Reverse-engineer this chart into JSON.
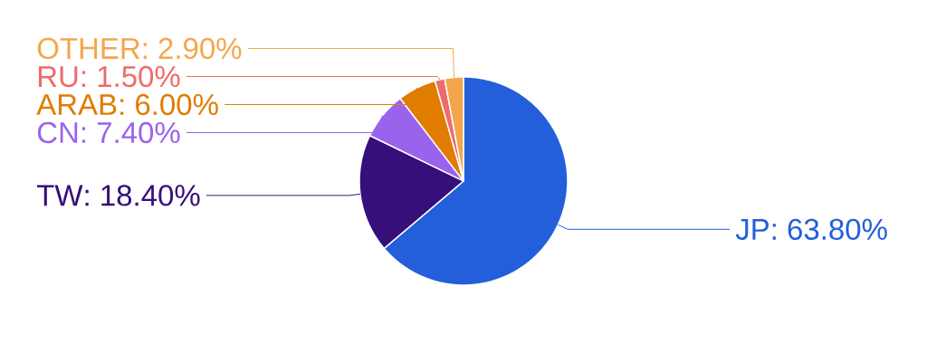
{
  "chart_data": {
    "type": "pie",
    "categories": [
      "JP",
      "TW",
      "CN",
      "ARAB",
      "RU",
      "OTHER"
    ],
    "values": [
      63.8,
      18.4,
      7.4,
      6.0,
      1.5,
      2.9
    ],
    "value_labels": [
      ": 63.80%",
      ": 18.40%",
      ": 7.40%",
      ": 6.00%",
      ": 1.50%",
      ": 2.90%"
    ],
    "colors": [
      "#235fdb",
      "#360f7a",
      "#9a63ec",
      "#e07c00",
      "#ee6b6b",
      "#f4a64c"
    ]
  }
}
